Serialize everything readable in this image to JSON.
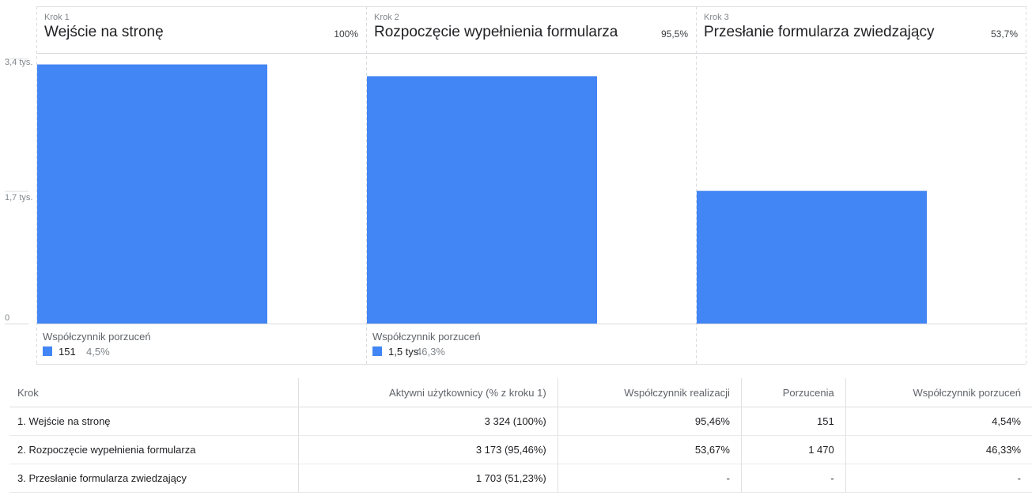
{
  "chart_data": {
    "type": "bar",
    "categories": [
      "Wejście na stronę",
      "Rozpoczęcie wypełnienia formularza",
      "Przesłanie formularza zwiedzający"
    ],
    "step_labels": [
      "Krok 1",
      "Krok 2",
      "Krok 3"
    ],
    "values": [
      3324,
      3173,
      1703
    ],
    "completion_percent_labels": [
      "100%",
      "95,5%",
      "53,7%"
    ],
    "ylim": [
      0,
      3400
    ],
    "y_ticks": [
      {
        "value": 3400,
        "label": "3,4 tys."
      },
      {
        "value": 1700,
        "label": "1,7 tys."
      },
      {
        "value": 0,
        "label": "0"
      }
    ],
    "bar_color": "#4285f4",
    "abandonment": {
      "title": "Współczynnik porzuceń",
      "items": [
        {
          "value_label": "151",
          "percent_label": "4,5%"
        },
        {
          "value_label": "1,5 tys.",
          "percent_label": "46,3%"
        }
      ]
    }
  },
  "table": {
    "headers": [
      "Krok",
      "Aktywni użytkownicy (% z kroku 1)",
      "Współczynnik realizacji",
      "Porzucenia",
      "Współczynnik porzuceń"
    ],
    "rows": [
      [
        "1. Wejście na stronę",
        "3 324 (100%)",
        "95,46%",
        "151",
        "4,54%"
      ],
      [
        "2. Rozpoczęcie wypełnienia formularza",
        "3 173 (95,46%)",
        "53,67%",
        "1 470",
        "46,33%"
      ],
      [
        "3. Przesłanie formularza zwiedzający",
        "1 703 (51,23%)",
        "-",
        "-",
        "-"
      ]
    ]
  }
}
